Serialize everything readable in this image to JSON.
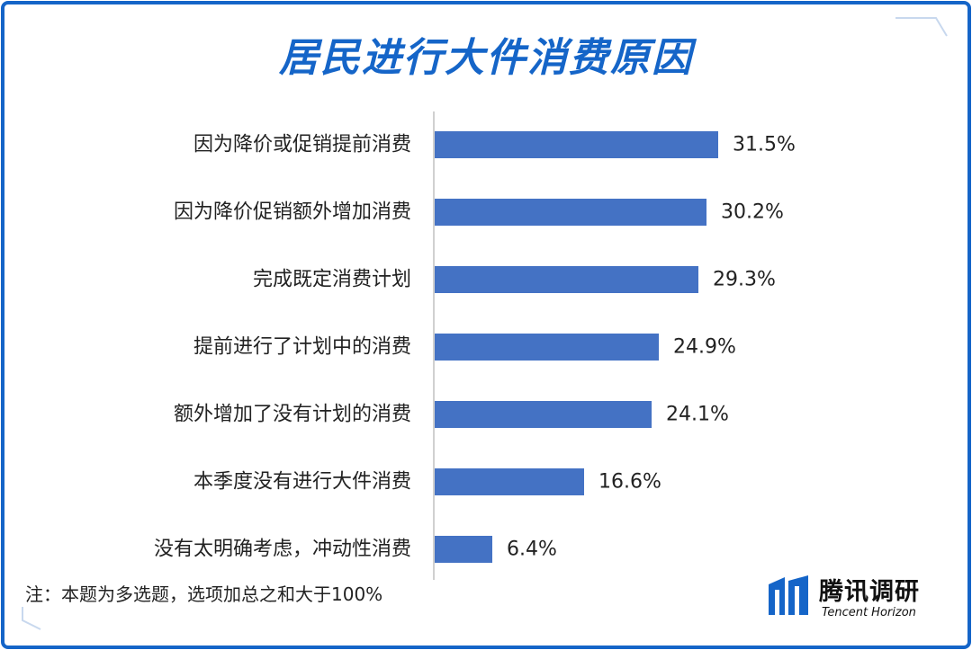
{
  "title": "居民进行大件消费原因",
  "note": "注：本题为多选题，选项加总之和大于100%",
  "brand": {
    "name": "腾讯调研",
    "sub": "Tencent Horizon",
    "logo_icon": "tencent-horizon-logo"
  },
  "colors": {
    "bar": "#4472c4",
    "frame": "#1565c8",
    "title": "#1565c8"
  },
  "chart_data": {
    "type": "bar",
    "orientation": "horizontal",
    "categories": [
      "因为降价或促销提前消费",
      "因为降价促销额外增加消费",
      "完成既定消费计划",
      "提前进行了计划中的消费",
      "额外增加了没有计划的消费",
      "本季度没有进行大件消费",
      "没有太明确考虑，冲动性消费"
    ],
    "values": [
      31.5,
      30.2,
      29.3,
      24.9,
      24.1,
      16.6,
      6.4
    ],
    "value_labels": [
      "31.5%",
      "30.2%",
      "29.3%",
      "24.9%",
      "24.1%",
      "16.6%",
      "6.4%"
    ],
    "unit": "%",
    "xlim": [
      0,
      50
    ],
    "grid": false,
    "legend": "none"
  }
}
